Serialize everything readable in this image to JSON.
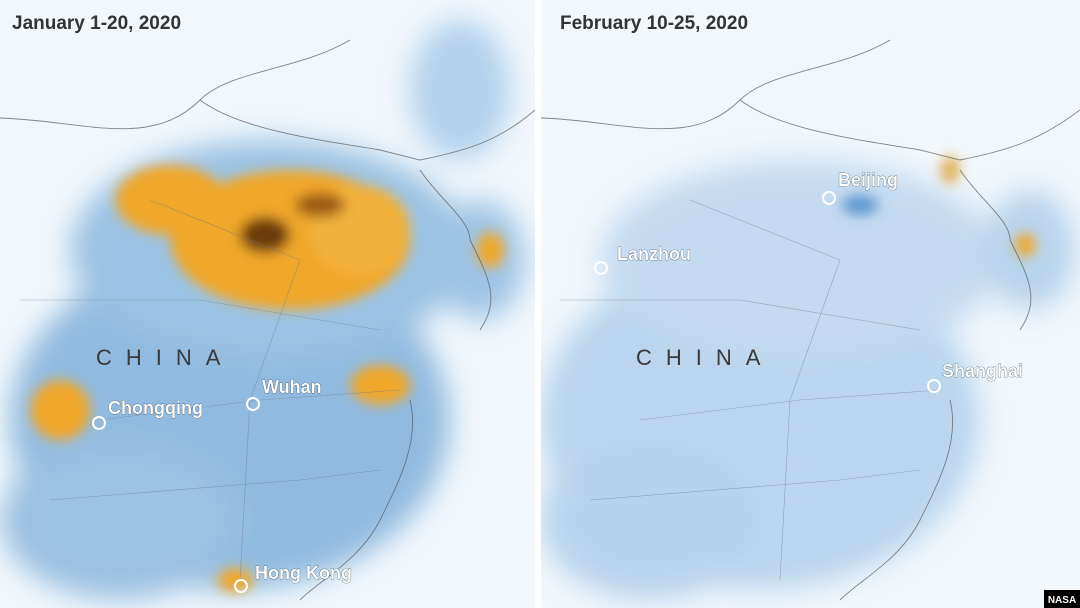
{
  "panels": [
    {
      "title": "January 1-20, 2020",
      "country": "CHINA",
      "cities": [
        "Chongqing",
        "Wuhan",
        "Hong Kong"
      ]
    },
    {
      "title": "February 10-25, 2020",
      "country": "CHINA",
      "cities": [
        "Beijing",
        "Lanzhou",
        "Shanghai"
      ]
    }
  ],
  "credit": "NASA"
}
